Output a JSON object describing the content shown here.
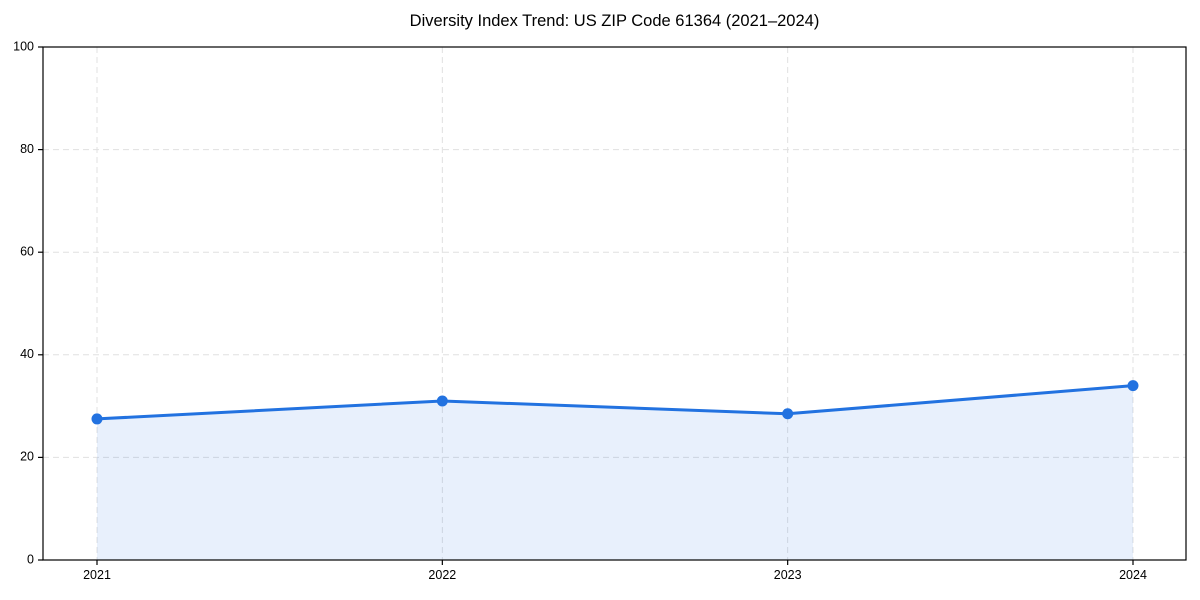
{
  "chart_data": {
    "type": "area",
    "title": "Diversity Index Trend: US ZIP Code 61364 (2021–2024)",
    "categories": [
      "2021",
      "2022",
      "2023",
      "2024"
    ],
    "series": [
      {
        "name": "Diversity Index",
        "values": [
          27.5,
          31,
          28.5,
          34
        ]
      }
    ],
    "xlabel": "",
    "ylabel": "",
    "ylim": [
      0,
      100
    ],
    "yticks": [
      0,
      20,
      40,
      60,
      80,
      100
    ],
    "grid": "dashed, horizontal and vertical",
    "legend_position": "none",
    "colors": {
      "line": "#2272e0",
      "marker": "#2272e0",
      "area_fill": "rgba(34,114,224,0.105)",
      "grid": "#e0e0e0",
      "spine": "#000000",
      "tick_label": "#000000",
      "background": "#ffffff"
    }
  }
}
